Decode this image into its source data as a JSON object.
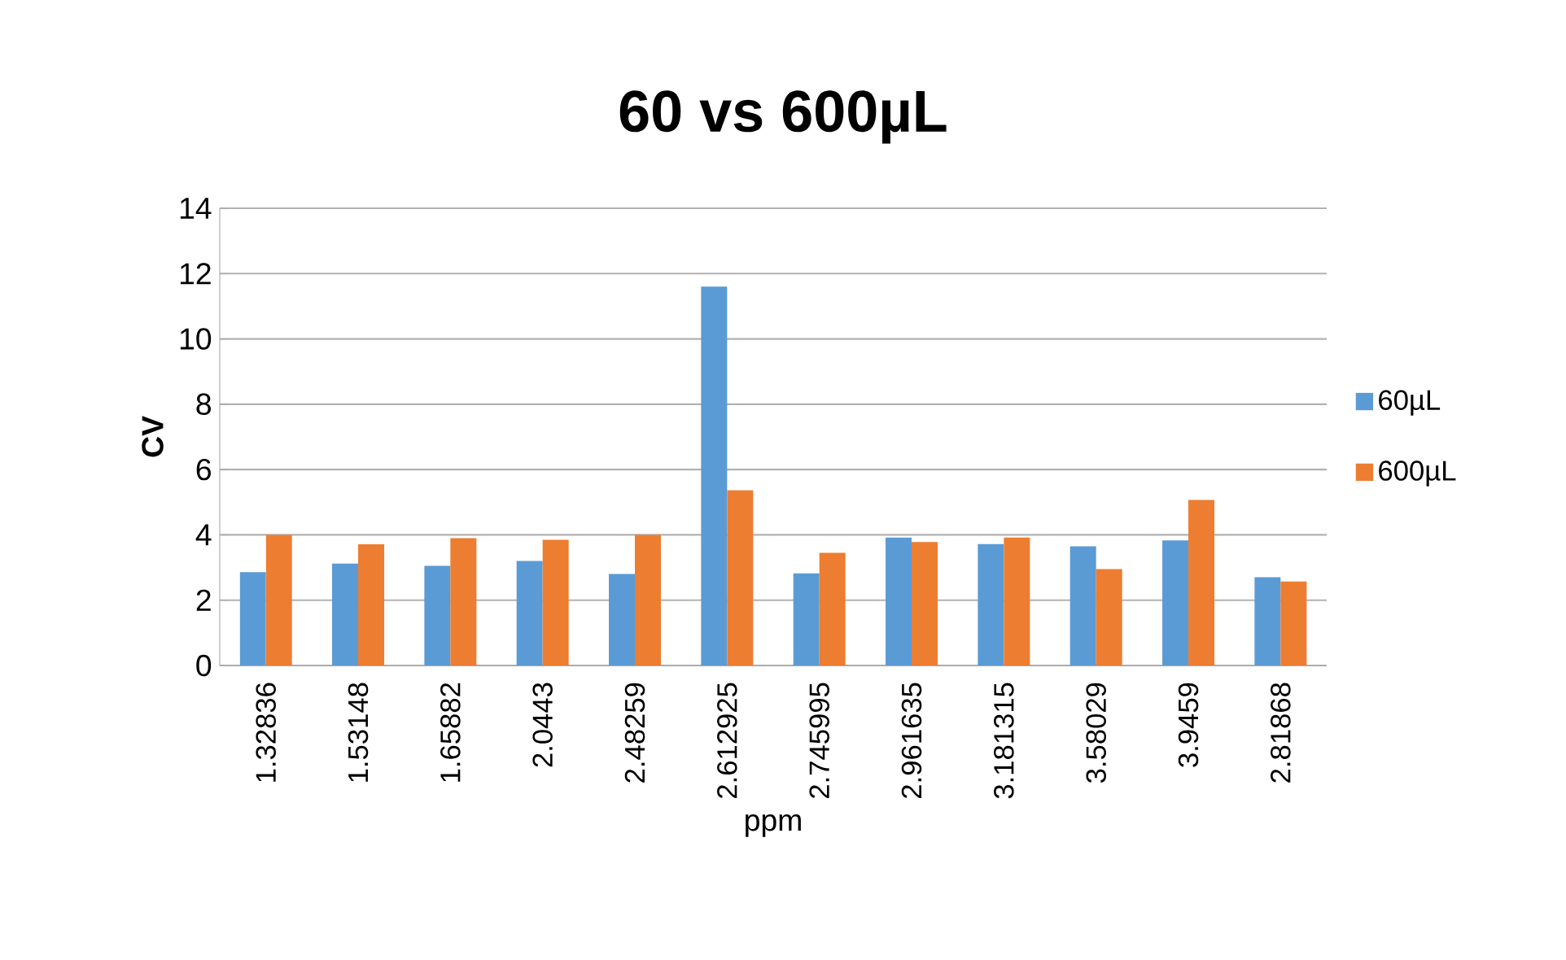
{
  "chart_data": {
    "type": "bar",
    "title": "60 vs 600µL",
    "xlabel": "ppm",
    "ylabel": "CV",
    "categories": [
      "1.32836",
      "1.53148",
      "1.65882",
      "2.0443",
      "2.48259",
      "2.612925",
      "2.745995",
      "2.961635",
      "3.181315",
      "3.58029",
      "3.9459",
      "2.81868"
    ],
    "series": [
      {
        "name": "60µL",
        "color": "#5b9bd5",
        "values": [
          2.86,
          3.12,
          3.05,
          3.2,
          2.8,
          11.6,
          2.82,
          3.92,
          3.72,
          3.65,
          3.83,
          2.7
        ]
      },
      {
        "name": "600µL",
        "color": "#ed7d31",
        "values": [
          4.0,
          3.71,
          3.9,
          3.85,
          4.0,
          5.37,
          3.45,
          3.78,
          3.92,
          2.95,
          5.07,
          2.57
        ]
      }
    ],
    "ylim": [
      0,
      14
    ],
    "yticks": [
      0,
      2,
      4,
      6,
      8,
      10,
      12,
      14
    ],
    "grid": "y",
    "legend": "right"
  }
}
